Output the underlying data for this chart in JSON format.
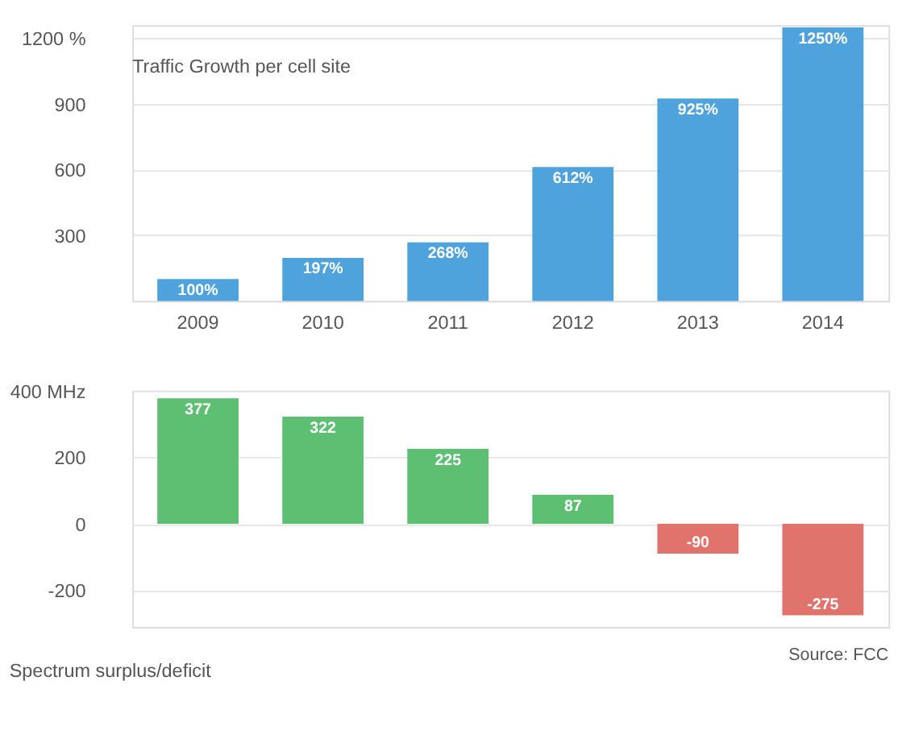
{
  "chart_data": [
    {
      "type": "bar",
      "title": "Traffic Growth per cell site",
      "categories": [
        "2009",
        "2010",
        "2011",
        "2012",
        "2013",
        "2014"
      ],
      "values": [
        100,
        197,
        268,
        612,
        925,
        1250
      ],
      "color": "#4ea3dd",
      "value_labels": [
        "100%",
        "197%",
        "268%",
        "612%",
        "925%",
        "1250%"
      ],
      "ylim": [
        0,
        1260
      ],
      "yticks": [
        300,
        600,
        900,
        {
          "value": 1200,
          "label": "1200 %"
        }
      ],
      "grid": "y"
    },
    {
      "type": "bar",
      "title": "Spectrum surplus/deficit",
      "categories": [
        "2009",
        "2010",
        "2011",
        "2012",
        "2013",
        "2014"
      ],
      "values": [
        377,
        322,
        225,
        87,
        -90,
        -275
      ],
      "colors": [
        "#5cbf72",
        "#5cbf72",
        "#5cbf72",
        "#5cbf72",
        "#e0736b",
        "#e0736b"
      ],
      "data_labels": true,
      "ylim": [
        -310,
        400
      ],
      "yticks": [
        {
          "value": 400,
          "label": "400 MHz"
        },
        200,
        0,
        -200
      ],
      "grid": "y",
      "tick_labels": "y",
      "annotations": [
        "Source: FCC"
      ]
    }
  ]
}
